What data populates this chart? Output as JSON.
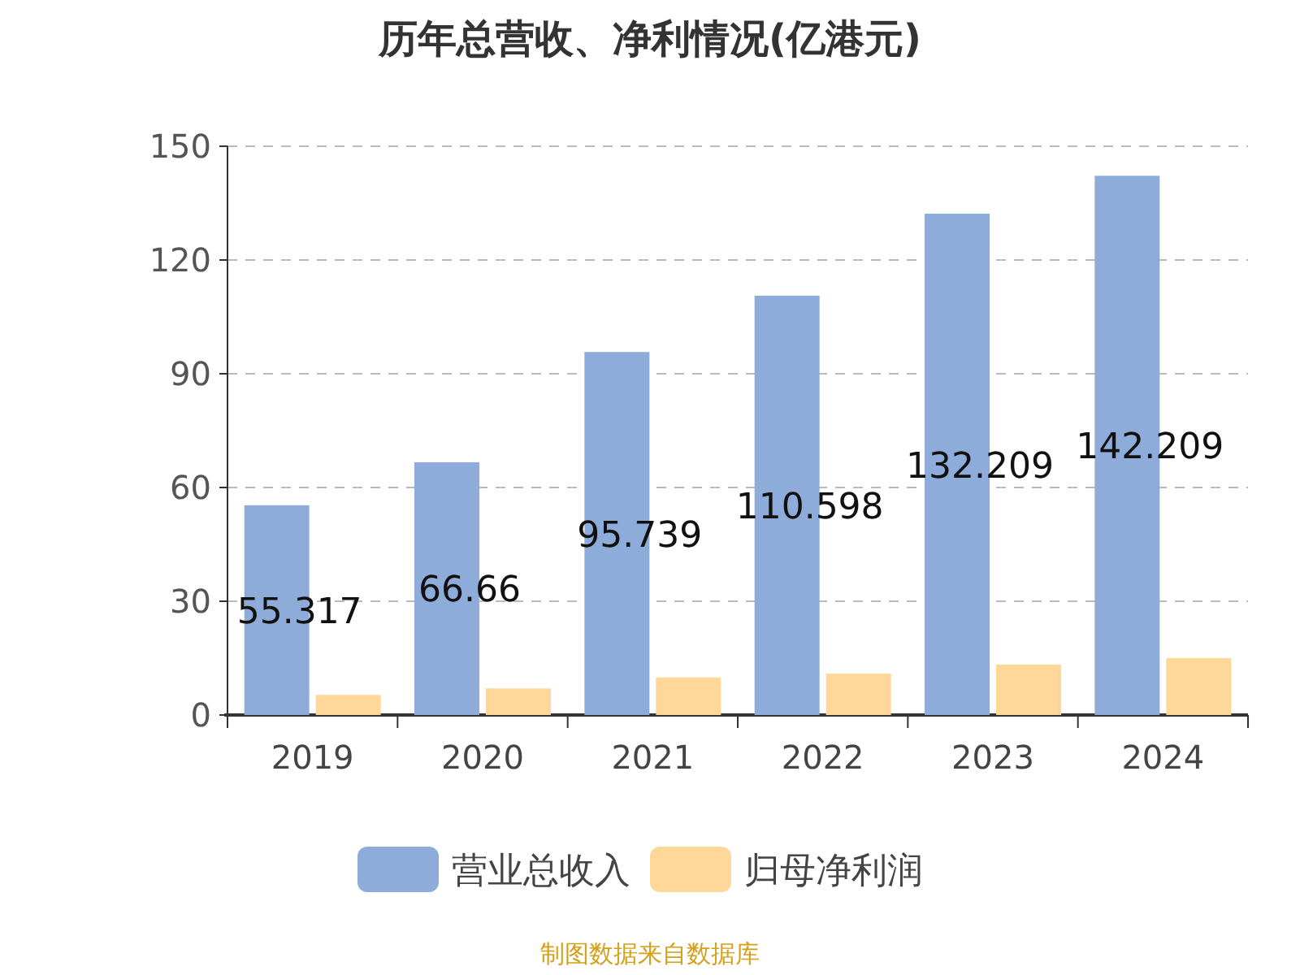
{
  "chart_data": {
    "type": "bar",
    "title": "历年总营收、净利情况(亿港元)",
    "categories": [
      "2019",
      "2020",
      "2021",
      "2022",
      "2023",
      "2024"
    ],
    "series": [
      {
        "name": "营业总收入",
        "color": "#8eacda",
        "values": [
          55.317,
          66.66,
          95.739,
          110.598,
          132.209,
          142.209
        ],
        "value_labels": [
          "55.317",
          "66.66",
          "95.739",
          "110.598",
          "132.209",
          "142.209"
        ]
      },
      {
        "name": "归母净利润",
        "color": "#ffd799",
        "values": [
          5.3,
          7.0,
          9.9,
          10.9,
          13.3,
          15.0
        ]
      }
    ],
    "ylim": [
      0,
      150
    ],
    "yticks": [
      0,
      30,
      60,
      90,
      120,
      150
    ],
    "grid": "y",
    "legend": "bottom",
    "annotations": [
      "制图数据来自数据库"
    ]
  }
}
